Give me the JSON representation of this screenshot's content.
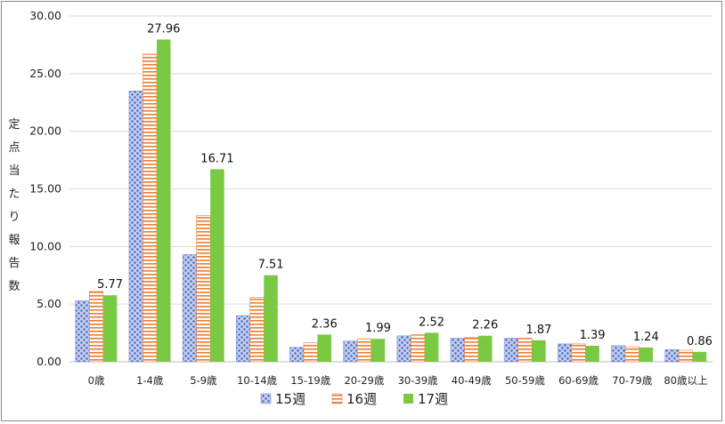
{
  "chart_data": {
    "type": "bar",
    "title": "",
    "xlabel": "",
    "ylabel": "定点当たり報告数",
    "ylim": [
      0,
      30
    ],
    "yticks": [
      "0.00",
      "5.00",
      "10.00",
      "15.00",
      "20.00",
      "25.00",
      "30.00"
    ],
    "grid": true,
    "legend_position": "bottom",
    "categories": [
      "0歳",
      "1-4歳",
      "5-9歳",
      "10-14歳",
      "15-19歳",
      "20-29歳",
      "30-39歳",
      "40-49歳",
      "50-59歳",
      "60-69歳",
      "70-79歳",
      "80歳以上"
    ],
    "series": [
      {
        "name": "15週",
        "color": "#7a93d8",
        "pattern": "dots",
        "values": [
          5.3,
          23.5,
          9.3,
          4.0,
          1.25,
          1.8,
          2.25,
          2.05,
          2.05,
          1.55,
          1.4,
          1.05
        ]
      },
      {
        "name": "16週",
        "color": "#ed7d31",
        "pattern": "horizontal-stripes",
        "values": [
          6.1,
          26.7,
          12.7,
          5.6,
          1.65,
          2.0,
          2.35,
          2.1,
          2.05,
          1.55,
          1.3,
          1.0
        ]
      },
      {
        "name": "17週",
        "color": "#7ac943",
        "pattern": "solid",
        "values": [
          5.77,
          27.96,
          16.71,
          7.51,
          2.36,
          1.99,
          2.52,
          2.26,
          1.87,
          1.39,
          1.24,
          0.86
        ],
        "data_labels": [
          "5.77",
          "27.96",
          "16.71",
          "7.51",
          "2.36",
          "1.99",
          "2.52",
          "2.26",
          "1.87",
          "1.39",
          "1.24",
          "0.86"
        ]
      }
    ]
  }
}
